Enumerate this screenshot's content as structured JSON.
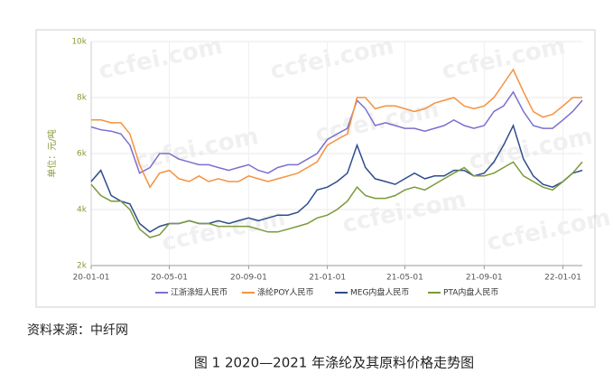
{
  "chart_data": {
    "type": "line",
    "y_label": "单位：元/吨",
    "watermark": "ccfei.com",
    "x": [
      "20-01-01",
      "20-01-16",
      "20-02-01",
      "20-02-16",
      "20-03-01",
      "20-03-16",
      "20-04-01",
      "20-04-16",
      "20-05-01",
      "20-05-16",
      "20-06-01",
      "20-06-16",
      "20-07-01",
      "20-07-16",
      "20-08-01",
      "20-08-16",
      "20-09-01",
      "20-09-16",
      "20-10-01",
      "20-10-16",
      "20-11-01",
      "20-11-16",
      "20-12-01",
      "20-12-16",
      "21-01-01",
      "21-01-16",
      "21-02-01",
      "21-02-16",
      "21-03-01",
      "21-03-16",
      "21-04-01",
      "21-04-16",
      "21-05-01",
      "21-05-16",
      "21-06-01",
      "21-06-16",
      "21-07-01",
      "21-07-16",
      "21-08-01",
      "21-08-16",
      "21-09-01",
      "21-09-16",
      "21-10-01",
      "21-10-16",
      "21-11-01",
      "21-11-16",
      "21-12-01",
      "21-12-16",
      "22-01-01",
      "22-01-16",
      "22-01-31"
    ],
    "xlim": [
      "20-01-01",
      "22-01-31"
    ],
    "xticks": [
      "20-01-01",
      "20-05-01",
      "20-09-01",
      "21-01-01",
      "21-05-01",
      "21-09-01",
      "22-01-01"
    ],
    "ylim": [
      2000,
      10000
    ],
    "yticks": [
      {
        "value": 2000,
        "label": "2k"
      },
      {
        "value": 4000,
        "label": "4k"
      },
      {
        "value": 6000,
        "label": "6k"
      },
      {
        "value": 8000,
        "label": "8k"
      },
      {
        "value": 10000,
        "label": "10k"
      }
    ],
    "grid": true,
    "series": [
      {
        "name": "江浙涤短人民币",
        "color": "#7b6fd0",
        "values": [
          6950,
          6850,
          6800,
          6700,
          6300,
          5300,
          5500,
          6000,
          6000,
          5800,
          5700,
          5600,
          5600,
          5500,
          5400,
          5500,
          5600,
          5400,
          5300,
          5500,
          5600,
          5600,
          5800,
          6000,
          6500,
          6700,
          6900,
          7900,
          7600,
          7000,
          7100,
          7000,
          6900,
          6900,
          6800,
          6900,
          7000,
          7200,
          7000,
          6900,
          7000,
          7500,
          7700,
          8200,
          7500,
          7000,
          6900,
          6900,
          7200,
          7500,
          7900
        ]
      },
      {
        "name": "涤纶POY人民币",
        "color": "#f5923e",
        "values": [
          7200,
          7200,
          7100,
          7100,
          6700,
          5600,
          4800,
          5300,
          5400,
          5100,
          5000,
          5200,
          5000,
          5100,
          5000,
          5000,
          5200,
          5100,
          5000,
          5100,
          5200,
          5300,
          5500,
          5700,
          6300,
          6500,
          6700,
          8000,
          8000,
          7600,
          7700,
          7700,
          7600,
          7500,
          7600,
          7800,
          7900,
          8000,
          7700,
          7600,
          7700,
          8000,
          8500,
          9000,
          8200,
          7500,
          7300,
          7400,
          7700,
          8000,
          8000
        ]
      },
      {
        "name": "MEG内盘人民币",
        "color": "#2e4d8b",
        "values": [
          5000,
          5400,
          4500,
          4300,
          4200,
          3500,
          3200,
          3400,
          3500,
          3500,
          3600,
          3500,
          3500,
          3600,
          3500,
          3600,
          3700,
          3600,
          3700,
          3800,
          3800,
          3900,
          4200,
          4700,
          4800,
          5000,
          5300,
          6300,
          5500,
          5100,
          5000,
          4900,
          5100,
          5300,
          5100,
          5200,
          5200,
          5400,
          5400,
          5200,
          5300,
          5700,
          6300,
          7000,
          5800,
          5200,
          4900,
          4800,
          5000,
          5300,
          5400
        ]
      },
      {
        "name": "PTA内盘人民币",
        "color": "#7a9a3a",
        "values": [
          4900,
          4500,
          4300,
          4300,
          4000,
          3300,
          3000,
          3100,
          3500,
          3500,
          3600,
          3500,
          3500,
          3400,
          3400,
          3400,
          3400,
          3300,
          3200,
          3200,
          3300,
          3400,
          3500,
          3700,
          3800,
          4000,
          4300,
          4800,
          4500,
          4400,
          4400,
          4500,
          4700,
          4800,
          4700,
          4900,
          5100,
          5300,
          5500,
          5200,
          5200,
          5300,
          5500,
          5700,
          5200,
          5000,
          4800,
          4700,
          5000,
          5300,
          5700
        ]
      }
    ]
  },
  "source": "资料来源：中纤网",
  "caption": "图 1  2020—2021 年涤纶及其原料价格走势图"
}
